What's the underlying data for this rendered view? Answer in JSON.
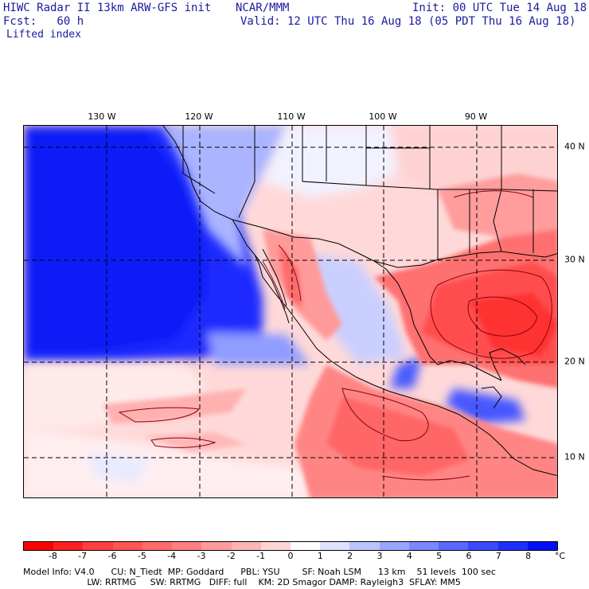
{
  "header": {
    "title": "HIWC Radar II 13km ARW-GFS init",
    "org": "NCAR/MMM",
    "init": "Init: 00 UTC Tue 14 Aug 18",
    "fcst": "Fcst:   60 h",
    "valid": "Valid: 12 UTC Thu 16 Aug 18 (05 PDT Thu 16 Aug 18)",
    "field": "Lifted index"
  },
  "map": {
    "lon_labels": [
      "130 W",
      "120 W",
      "110 W",
      "100 W",
      "90 W"
    ],
    "lat_labels": [
      "40 N",
      "30 N",
      "20 N",
      "10 N"
    ]
  },
  "colorbar": {
    "tick_labels": [
      "-8",
      "-7",
      "-6",
      "-5",
      "-4",
      "-3",
      "-2",
      "-1",
      "0",
      "1",
      "2",
      "3",
      "4",
      "5",
      "6",
      "7",
      "8"
    ],
    "unit": "°C",
    "colors": [
      "#ff0000",
      "#ff2020",
      "#ff4040",
      "#ff5555",
      "#ff6b6b",
      "#ff8080",
      "#ff9b9b",
      "#ffb5b5",
      "#ffd6d6",
      "#ffffff",
      "#dde2ff",
      "#bcc4ff",
      "#9aa5ff",
      "#7a87ff",
      "#5a68ff",
      "#3a4aff",
      "#1f2fff",
      "#0010ff"
    ]
  },
  "footer": {
    "line1": "Model Info: V4.0      CU: N_Tiedt  MP: Goddard      PBL: YSU        SF: Noah LSM      13 km    51 levels  100 sec",
    "line2": "                       LW: RRTMG     SW: RRTMG   DIFF: full    KM: 2D Smagor DAMP: Rayleigh3  SFLAY: MM5"
  }
}
